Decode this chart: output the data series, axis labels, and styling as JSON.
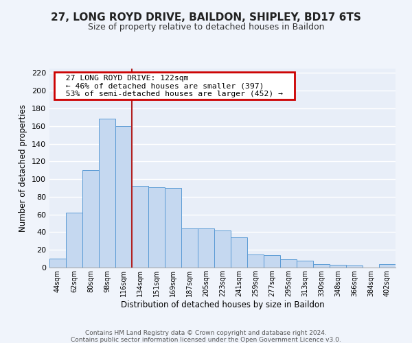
{
  "title": "27, LONG ROYD DRIVE, BAILDON, SHIPLEY, BD17 6TS",
  "subtitle": "Size of property relative to detached houses in Baildon",
  "xlabel": "Distribution of detached houses by size in Baildon",
  "ylabel": "Number of detached properties",
  "bar_labels": [
    "44sqm",
    "62sqm",
    "80sqm",
    "98sqm",
    "116sqm",
    "134sqm",
    "151sqm",
    "169sqm",
    "187sqm",
    "205sqm",
    "223sqm",
    "241sqm",
    "259sqm",
    "277sqm",
    "295sqm",
    "313sqm",
    "330sqm",
    "348sqm",
    "366sqm",
    "384sqm",
    "402sqm"
  ],
  "bar_values": [
    10,
    62,
    110,
    168,
    160,
    92,
    91,
    90,
    44,
    44,
    42,
    34,
    15,
    14,
    9,
    8,
    4,
    3,
    2,
    0,
    4
  ],
  "bar_color": "#c5d8f0",
  "bar_edge_color": "#5b9bd5",
  "fig_bg_color": "#f0f4fb",
  "plot_bg_color": "#e8eef8",
  "grid_color": "#ffffff",
  "property_label": "27 LONG ROYD DRIVE: 122sqm",
  "annotation_line1": "← 46% of detached houses are smaller (397)",
  "annotation_line2": "53% of semi-detached houses are larger (452) →",
  "red_line_x": 4.5,
  "ylim": [
    0,
    225
  ],
  "yticks": [
    0,
    20,
    40,
    60,
    80,
    100,
    120,
    140,
    160,
    180,
    200,
    220
  ],
  "footer_line1": "Contains HM Land Registry data © Crown copyright and database right 2024.",
  "footer_line2": "Contains public sector information licensed under the Open Government Licence v3.0."
}
